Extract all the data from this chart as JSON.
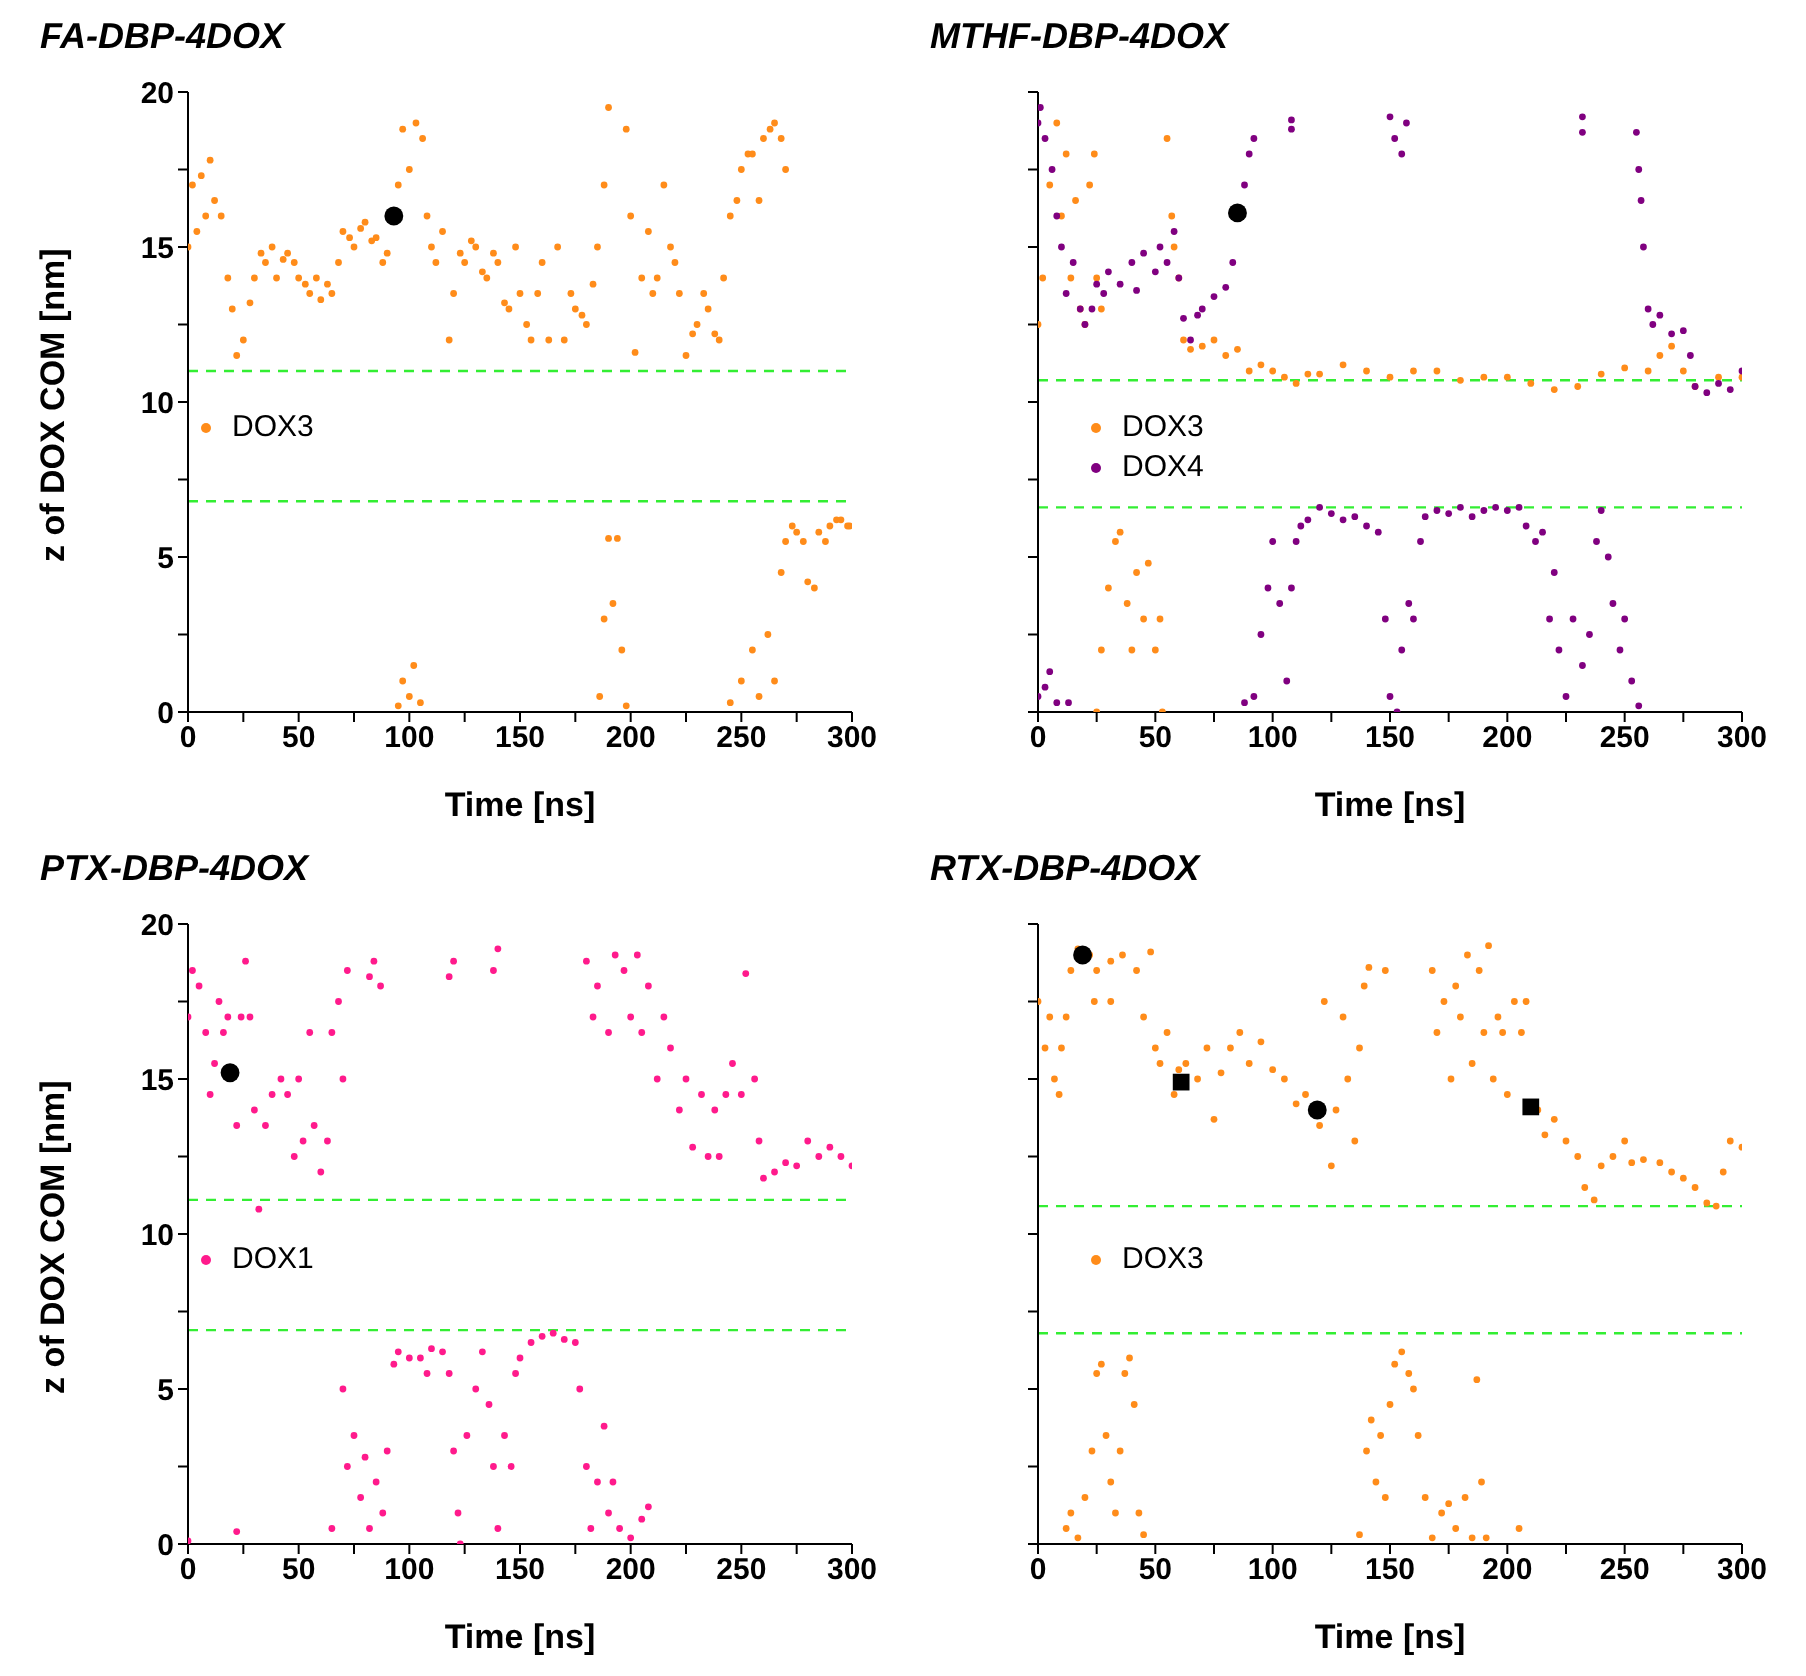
{
  "chart_data": [
    {
      "type": "scatter",
      "title": "FA-DBP-4DOX",
      "xlabel": "Time [ns]",
      "ylabel": "z of DOX COM [nm]",
      "xlim": [
        0,
        300
      ],
      "ylim": [
        0,
        20
      ],
      "xticks": [
        0,
        {
          "value": 25,
          "label": null
        },
        50,
        {
          "value": 75,
          "label": null
        },
        100,
        {
          "value": 125,
          "label": null
        },
        150,
        {
          "value": 175,
          "label": null
        },
        200,
        {
          "value": 225,
          "label": null
        },
        250,
        {
          "value": 275,
          "label": null
        },
        300
      ],
      "yticks": [
        0,
        {
          "value": 2.5,
          "label": null
        },
        5,
        {
          "value": 7.5,
          "label": null
        },
        10,
        {
          "value": 12.5,
          "label": null
        },
        15,
        {
          "value": 17.5,
          "label": null
        },
        20
      ],
      "legend": "left",
      "marker": "circle",
      "ref_lines": [
        {
          "axis": "y",
          "value": 11.0,
          "label": null,
          "color": "#33ee33",
          "line_style": "dashed"
        },
        {
          "axis": "y",
          "value": 6.8,
          "label": null,
          "color": "#33ee33",
          "line_style": "dashed"
        }
      ],
      "series": [
        {
          "name": "DOX3",
          "color": "#ff8c1a",
          "x": [
            0,
            2,
            4,
            6,
            8,
            10,
            12,
            15,
            18,
            20,
            22,
            25,
            28,
            30,
            33,
            35,
            38,
            40,
            43,
            45,
            48,
            50,
            53,
            55,
            58,
            60,
            63,
            65,
            68,
            70,
            73,
            75,
            78,
            80,
            83,
            85,
            88,
            90,
            95,
            97,
            100,
            103,
            106,
            108,
            110,
            112,
            115,
            118,
            120,
            123,
            125,
            128,
            130,
            133,
            135,
            138,
            140,
            143,
            145,
            148,
            150,
            153,
            155,
            158,
            160,
            163,
            167,
            170,
            173,
            175,
            178,
            180,
            183,
            185,
            188,
            190,
            95,
            97,
            100,
            102,
            105,
            186,
            188,
            190,
            192,
            194,
            196,
            198,
            198,
            200,
            202,
            205,
            208,
            210,
            212,
            215,
            218,
            220,
            222,
            225,
            228,
            230,
            233,
            235,
            238,
            240,
            242,
            245,
            248,
            250,
            253,
            255,
            258,
            260,
            263,
            265,
            268,
            270,
            245,
            250,
            255,
            258,
            262,
            265,
            268,
            270,
            273,
            275,
            278,
            280,
            283,
            285,
            288,
            290,
            293,
            295,
            298,
            299
          ],
          "values": [
            15,
            17,
            15.5,
            17.3,
            16,
            17.8,
            16.5,
            16,
            14,
            13,
            11.5,
            12,
            13.2,
            14,
            14.8,
            14.5,
            15,
            14,
            14.6,
            14.8,
            14.5,
            14,
            13.8,
            13.5,
            14,
            13.3,
            13.8,
            13.5,
            14.5,
            15.5,
            15.3,
            15,
            15.6,
            15.8,
            15.2,
            15.3,
            14.5,
            14.8,
            17,
            18.8,
            17.5,
            19,
            18.5,
            16,
            15,
            14.5,
            15.5,
            12,
            13.5,
            14.8,
            14.5,
            15.2,
            15,
            14.2,
            14,
            14.8,
            14.5,
            13.2,
            13,
            15,
            13.5,
            12.5,
            12,
            13.5,
            14.5,
            12,
            15,
            12,
            13.5,
            13,
            12.8,
            12.5,
            13.8,
            15,
            17,
            19.5,
            0.2,
            1,
            0.5,
            1.5,
            0.3,
            0.5,
            3,
            5.6,
            3.5,
            5.6,
            2,
            0.2,
            18.8,
            16,
            11.6,
            14,
            15.5,
            13.5,
            14,
            17,
            15,
            14.5,
            13.5,
            11.5,
            12.2,
            12.5,
            13.5,
            13,
            12.2,
            12,
            14,
            16,
            16.5,
            17.5,
            18,
            18,
            16.5,
            18.5,
            18.8,
            19,
            18.5,
            17.5,
            0.3,
            1,
            2,
            0.5,
            2.5,
            1,
            4.5,
            5.5,
            6,
            5.8,
            5.5,
            4.2,
            4,
            5.8,
            5.5,
            6,
            6.2,
            6.2,
            6,
            6
          ]
        },
        {
          "color": "#000000",
          "marker": "circle",
          "x": [
            93
          ],
          "values": [
            16.0
          ]
        }
      ]
    },
    {
      "type": "scatter",
      "title": "MTHF-DBP-4DOX",
      "xlabel": "Time [ns]",
      "xlim": [
        0,
        300
      ],
      "ylim": [
        0,
        20
      ],
      "xticks": [
        0,
        {
          "value": 25,
          "label": null
        },
        50,
        {
          "value": 75,
          "label": null
        },
        100,
        {
          "value": 125,
          "label": null
        },
        150,
        {
          "value": 175,
          "label": null
        },
        200,
        {
          "value": 225,
          "label": null
        },
        250,
        {
          "value": 275,
          "label": null
        },
        300
      ],
      "yticks": [
        0,
        {
          "value": 2.5,
          "label": null
        },
        5,
        {
          "value": 7.5,
          "label": null
        },
        10,
        {
          "value": 12.5,
          "label": null
        },
        15,
        {
          "value": 17.5,
          "label": null
        },
        20
      ],
      "tick_labels": "x",
      "legend": "left",
      "marker": "circle",
      "ref_lines": [
        {
          "axis": "y",
          "value": 10.7,
          "label": null,
          "color": "#33ee33",
          "line_style": "dashed"
        },
        {
          "axis": "y",
          "value": 6.6,
          "label": null,
          "color": "#33ee33",
          "line_style": "dashed"
        }
      ],
      "series": [
        {
          "name": "DOX3",
          "color": "#ff8c1a",
          "x": [
            0,
            2,
            5,
            8,
            10,
            12,
            14,
            16,
            18,
            20,
            22,
            24,
            25,
            27,
            55,
            57,
            58,
            60,
            62,
            65,
            70,
            75,
            80,
            85,
            90,
            95,
            100,
            105,
            110,
            115,
            120,
            130,
            140,
            150,
            160,
            170,
            180,
            190,
            200,
            210,
            220,
            230,
            240,
            250,
            260,
            265,
            270,
            275,
            280,
            290,
            300,
            25,
            27,
            30,
            33,
            35,
            38,
            40,
            42,
            45,
            47,
            50,
            52,
            53
          ],
          "values": [
            12.5,
            14,
            17,
            19,
            16,
            18,
            14,
            16.5,
            13,
            12.5,
            17,
            18,
            14,
            13,
            18.5,
            16,
            15,
            14,
            12,
            11.7,
            11.8,
            12,
            11.5,
            11.7,
            11,
            11.2,
            11,
            10.8,
            10.6,
            10.9,
            10.9,
            11.2,
            11,
            10.8,
            11,
            11,
            10.7,
            10.8,
            10.8,
            10.6,
            10.4,
            10.5,
            10.9,
            11.1,
            11,
            11.5,
            11.8,
            11,
            10.5,
            10.8,
            10.8,
            0,
            2,
            4,
            5.5,
            5.8,
            3.5,
            2,
            4.5,
            3,
            4.8,
            2,
            3,
            0
          ]
        },
        {
          "name": "DOX4",
          "color": "#800080",
          "x": [
            0,
            1,
            3,
            6,
            8,
            10,
            12,
            15,
            18,
            20,
            23,
            25,
            28,
            30,
            35,
            40,
            42,
            45,
            50,
            52,
            55,
            58,
            60,
            62,
            65,
            68,
            70,
            75,
            80,
            83,
            88,
            90,
            92,
            108,
            108,
            150,
            152,
            155,
            157,
            232,
            232,
            255,
            256,
            257,
            258,
            260,
            262,
            265,
            270,
            275,
            278,
            280,
            285,
            290,
            295,
            300,
            0,
            3,
            5,
            8,
            13,
            88,
            92,
            95,
            98,
            100,
            103,
            106,
            108,
            110,
            112,
            115,
            120,
            125,
            130,
            135,
            140,
            145,
            148,
            150,
            153,
            155,
            158,
            160,
            163,
            165,
            170,
            175,
            180,
            185,
            190,
            195,
            200,
            205,
            208,
            212,
            215,
            218,
            220,
            222,
            225,
            228,
            232,
            235,
            238,
            240,
            243,
            245,
            248,
            250,
            253,
            256
          ],
          "values": [
            19,
            19.5,
            18.5,
            17.5,
            16,
            15,
            13.5,
            14.5,
            13,
            12.5,
            13,
            13.8,
            13.5,
            14.2,
            13.8,
            14.5,
            13.6,
            14.8,
            14.2,
            15,
            14.5,
            15.5,
            14,
            12.7,
            12,
            12.8,
            13,
            13.4,
            13.7,
            14.5,
            17,
            18,
            18.5,
            19.1,
            18.8,
            19.2,
            18.5,
            18,
            19,
            19.2,
            18.7,
            18.7,
            17.5,
            16.5,
            15,
            13,
            12.5,
            12.8,
            12.2,
            12.3,
            11.5,
            10.5,
            10.3,
            10.6,
            10.4,
            11,
            0.5,
            0.8,
            1.3,
            0.3,
            0.3,
            0.3,
            0.5,
            2.5,
            4,
            5.5,
            3.5,
            1,
            4,
            5.5,
            6,
            6.2,
            6.6,
            6.4,
            6.2,
            6.3,
            6,
            5.8,
            3,
            0.5,
            0,
            2,
            3.5,
            3,
            5.5,
            6.3,
            6.5,
            6.4,
            6.6,
            6.3,
            6.5,
            6.6,
            6.5,
            6.6,
            6,
            5.5,
            5.8,
            3,
            4.5,
            2,
            0.5,
            3,
            1.5,
            2.5,
            5.5,
            6.5,
            5,
            3.5,
            2,
            3,
            1,
            0.2
          ]
        },
        {
          "color": "#000000",
          "marker": "circle",
          "x": [
            85
          ],
          "values": [
            16.1
          ]
        }
      ]
    },
    {
      "type": "scatter",
      "title": "PTX-DBP-4DOX",
      "xlabel": "Time [ns]",
      "ylabel": "z of DOX COM [nm]",
      "xlim": [
        0,
        300
      ],
      "ylim": [
        0,
        20
      ],
      "xticks": [
        0,
        {
          "value": 25,
          "label": null
        },
        50,
        {
          "value": 75,
          "label": null
        },
        100,
        {
          "value": 125,
          "label": null
        },
        150,
        {
          "value": 175,
          "label": null
        },
        200,
        {
          "value": 225,
          "label": null
        },
        250,
        {
          "value": 275,
          "label": null
        },
        300
      ],
      "yticks": [
        0,
        {
          "value": 2.5,
          "label": null
        },
        5,
        {
          "value": 7.5,
          "label": null
        },
        10,
        {
          "value": 12.5,
          "label": null
        },
        15,
        {
          "value": 17.5,
          "label": null
        },
        20
      ],
      "legend": "left",
      "marker": "circle",
      "ref_lines": [
        {
          "axis": "y",
          "value": 11.1,
          "label": null,
          "color": "#33ee33",
          "line_style": "dashed"
        },
        {
          "axis": "y",
          "value": 6.9,
          "label": null,
          "color": "#33ee33",
          "line_style": "dashed"
        }
      ],
      "series": [
        {
          "name": "DOX1",
          "color": "#ff1a8c",
          "x": [
            0,
            2,
            5,
            8,
            10,
            12,
            14,
            16,
            18,
            22,
            24,
            26,
            28,
            30,
            32,
            35,
            38,
            42,
            45,
            48,
            50,
            52,
            55,
            57,
            60,
            63,
            65,
            68,
            70,
            72,
            82,
            84,
            87,
            118,
            120,
            138,
            140,
            180,
            183,
            185,
            190,
            193,
            197,
            200,
            203,
            205,
            208,
            212,
            215,
            218,
            222,
            225,
            228,
            232,
            235,
            238,
            240,
            243,
            246,
            250,
            252,
            256,
            258,
            260,
            265,
            270,
            275,
            280,
            285,
            290,
            295,
            300,
            0,
            22,
            65,
            70,
            72,
            75,
            78,
            80,
            82,
            85,
            88,
            90,
            93,
            95,
            100,
            105,
            108,
            110,
            115,
            118,
            120,
            122,
            123,
            126,
            130,
            133,
            136,
            138,
            140,
            143,
            146,
            148,
            150,
            155,
            160,
            165,
            170,
            175,
            177,
            180,
            182,
            185,
            188,
            190,
            192,
            195,
            200,
            205,
            208
          ],
          "values": [
            17,
            18.5,
            18,
            16.5,
            14.5,
            15.5,
            17.5,
            16.5,
            17,
            13.5,
            17,
            18.8,
            17,
            14,
            10.8,
            13.5,
            14.5,
            15,
            14.5,
            12.5,
            15,
            13,
            16.5,
            13.5,
            12,
            13,
            16.5,
            17.5,
            15,
            18.5,
            18.3,
            18.8,
            18,
            18.3,
            18.8,
            18.5,
            19.2,
            18.8,
            17,
            18,
            16.5,
            19,
            18.5,
            17,
            19,
            16.5,
            18,
            15,
            17,
            16,
            14,
            15,
            12.8,
            14.5,
            12.5,
            14,
            12.5,
            14.5,
            15.5,
            14.5,
            18.4,
            15,
            13,
            11.8,
            12,
            12.3,
            12.2,
            13,
            12.5,
            12.8,
            12.5,
            12.2,
            0.1,
            0.4,
            0.5,
            5,
            2.5,
            3.5,
            1.5,
            2.8,
            0.5,
            2,
            1,
            3,
            5.8,
            6.2,
            6,
            6,
            5.5,
            6.3,
            6.2,
            5.5,
            3,
            1,
            0,
            3.5,
            5,
            6.2,
            4.5,
            2.5,
            0.5,
            3.5,
            2.5,
            5.5,
            6,
            6.5,
            6.7,
            6.8,
            6.6,
            6.5,
            5,
            2.5,
            0.5,
            2,
            3.8,
            1,
            2,
            0.5,
            0.2,
            0.8,
            1.2
          ]
        },
        {
          "color": "#000000",
          "marker": "circle",
          "x": [
            19
          ],
          "values": [
            15.2
          ]
        }
      ]
    },
    {
      "type": "scatter",
      "title": "RTX-DBP-4DOX",
      "xlabel": "Time [ns]",
      "xlim": [
        0,
        300
      ],
      "ylim": [
        0,
        20
      ],
      "xticks": [
        0,
        {
          "value": 25,
          "label": null
        },
        50,
        {
          "value": 75,
          "label": null
        },
        100,
        {
          "value": 125,
          "label": null
        },
        150,
        {
          "value": 175,
          "label": null
        },
        200,
        {
          "value": 225,
          "label": null
        },
        250,
        {
          "value": 275,
          "label": null
        },
        300
      ],
      "yticks": [
        0,
        {
          "value": 2.5,
          "label": null
        },
        5,
        {
          "value": 7.5,
          "label": null
        },
        10,
        {
          "value": 12.5,
          "label": null
        },
        15,
        {
          "value": 17.5,
          "label": null
        },
        20
      ],
      "tick_labels": "x",
      "legend": "left",
      "marker": "circle",
      "ref_lines": [
        {
          "axis": "y",
          "value": 10.9,
          "label": null,
          "color": "#33ee33",
          "line_style": "dashed"
        },
        {
          "axis": "y",
          "value": 6.8,
          "label": null,
          "color": "#33ee33",
          "line_style": "dashed"
        }
      ],
      "series": [
        {
          "name": "DOX3",
          "color": "#ff8c1a",
          "x": [
            0,
            3,
            5,
            7,
            9,
            10,
            12,
            14,
            17,
            22,
            24,
            25,
            31,
            31,
            36,
            42,
            45,
            48,
            50,
            52,
            55,
            58,
            60,
            63,
            68,
            72,
            75,
            78,
            82,
            86,
            90,
            95,
            100,
            105,
            110,
            114,
            120,
            122,
            125,
            127,
            130,
            132,
            135,
            137,
            139,
            141,
            148,
            168,
            170,
            173,
            176,
            178,
            180,
            183,
            185,
            188,
            190,
            192,
            194,
            196,
            198,
            200,
            203,
            206,
            208,
            213,
            216,
            220,
            225,
            230,
            233,
            237,
            240,
            245,
            250,
            253,
            258,
            265,
            270,
            275,
            280,
            285,
            289,
            292,
            295,
            300,
            12,
            14,
            17,
            20,
            23,
            25,
            27,
            29,
            31,
            33,
            35,
            37,
            39,
            41,
            43,
            45,
            137,
            140,
            142,
            144,
            146,
            148,
            150,
            152,
            155,
            158,
            160,
            162,
            165,
            168,
            172,
            175,
            178,
            182,
            185,
            187,
            189,
            191,
            205
          ],
          "values": [
            17.5,
            16,
            17,
            15,
            14.5,
            16,
            17,
            18.5,
            19.2,
            19,
            17.5,
            18.5,
            18.8,
            17.5,
            19,
            18.5,
            17,
            19.1,
            16,
            15.5,
            16.5,
            14.5,
            15.3,
            15.5,
            15,
            16,
            13.7,
            15.2,
            16,
            16.5,
            15.5,
            16.2,
            15.3,
            15,
            14.2,
            14.5,
            13.5,
            17.5,
            12.2,
            14,
            17,
            15,
            13,
            16,
            18,
            18.6,
            18.5,
            18.5,
            16.5,
            17.5,
            15,
            18,
            17,
            19,
            15.5,
            18.5,
            16.5,
            19.3,
            15,
            17,
            16.5,
            14.5,
            17.5,
            16.5,
            17.5,
            14,
            13.2,
            13.7,
            13,
            12.5,
            11.5,
            11.1,
            12.2,
            12.5,
            13,
            12.3,
            12.4,
            12.3,
            12,
            11.8,
            11.5,
            11,
            10.9,
            12,
            13,
            12.8,
            0.5,
            1,
            0.2,
            1.5,
            3,
            5.5,
            5.8,
            3.5,
            2,
            1,
            3,
            5.5,
            6,
            4.5,
            1,
            0.3,
            0.3,
            3,
            4,
            2,
            3.5,
            1.5,
            4.5,
            5.8,
            6.2,
            5.5,
            5,
            3.5,
            1.5,
            0.2,
            1,
            1.3,
            0.5,
            1.5,
            0.2,
            5.3,
            2,
            0.2,
            0.5
          ]
        },
        {
          "color": "#000000",
          "marker": "circle",
          "x": [
            19,
            119
          ],
          "values": [
            19.0,
            14.0
          ]
        },
        {
          "color": "#000000",
          "marker": "square",
          "x": [
            61,
            210
          ],
          "values": [
            14.9,
            14.1
          ]
        }
      ]
    }
  ]
}
